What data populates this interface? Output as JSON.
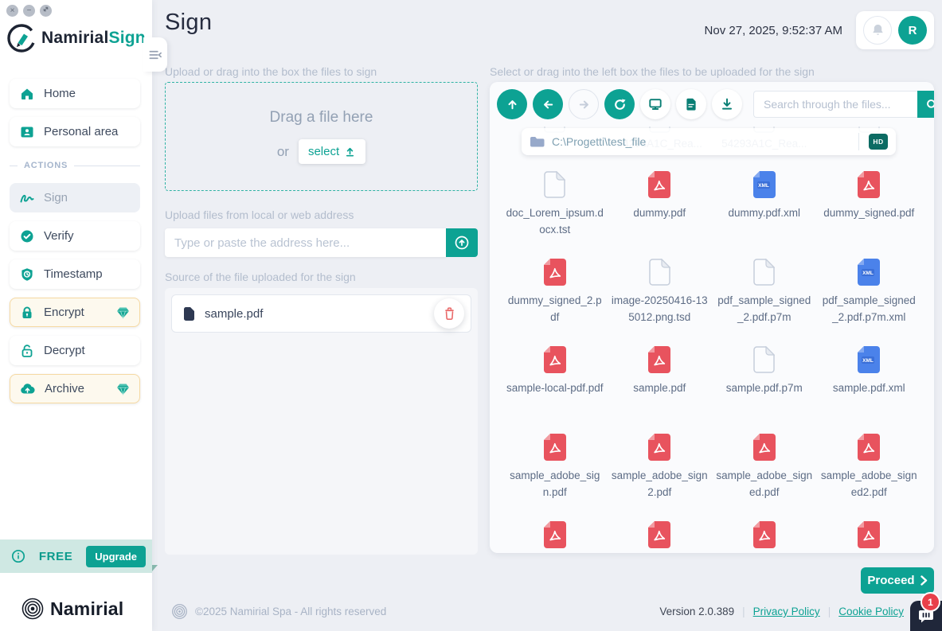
{
  "colors": {
    "teal": "#0da293",
    "navy": "#262c3f",
    "pdf_red": "#e8535e",
    "xml_blue": "#4b82ea",
    "premium_border": "#f6d9a2",
    "badge_red": "#e8404a"
  },
  "brand": {
    "primary": "Namirial",
    "accent": "Sign"
  },
  "window_controls": {
    "close": "×",
    "minimize": "−"
  },
  "sidebar": {
    "nav": [
      {
        "label": "Home",
        "icon": "home-icon"
      },
      {
        "label": "Personal area",
        "icon": "id-card-icon"
      }
    ],
    "section_label": "ACTIONS",
    "actions": [
      {
        "label": "Sign",
        "icon": "signature-icon",
        "state": "selected"
      },
      {
        "label": "Verify",
        "icon": "badge-check-icon"
      },
      {
        "label": "Timestamp",
        "icon": "shield-clock-icon"
      },
      {
        "label": "Encrypt",
        "icon": "lock-icon",
        "premium": true
      },
      {
        "label": "Decrypt",
        "icon": "unlock-icon"
      },
      {
        "label": "Archive",
        "icon": "cloud-upload-icon",
        "premium": true
      }
    ],
    "plan": {
      "label": "FREE",
      "upgrade": "Upgrade"
    },
    "footer_brand": "Namirial"
  },
  "header": {
    "title": "Sign",
    "datetime": "Nov 27, 2025, 9:52:37 AM",
    "avatar_initial": "R"
  },
  "upload": {
    "drop_label": "Upload or drag into the box the files to sign",
    "drag_text": "Drag a file here",
    "or_text": "or",
    "select_label": "select",
    "address_label": "Upload files from local or web address",
    "address_placeholder": "Type or paste the address here...",
    "source_label": "Source of the file uploaded for the sign",
    "files": [
      {
        "name": "sample.pdf"
      }
    ]
  },
  "browser": {
    "label": "Select or drag into the left box the files to be uploaded for the sign",
    "toolbar_icons": [
      "up-icon",
      "back-icon",
      "forward-icon",
      "refresh-icon",
      "monitor-icon",
      "document-icon",
      "download-icon",
      "search-icon"
    ],
    "search_placeholder": "Search through the files...",
    "path": "C:\\Progetti\\test_file",
    "drive_badge": "HD",
    "obscured_files": [
      "",
      "54293A1C_Rea...",
      "54293A1C_Rea...",
      ""
    ],
    "files": [
      {
        "name": "doc_Lorem_ipsum.docx.tst",
        "type": "file"
      },
      {
        "name": "dummy.pdf",
        "type": "pdf"
      },
      {
        "name": "dummy.pdf.xml",
        "type": "xml"
      },
      {
        "name": "dummy_signed.pdf",
        "type": "pdf"
      },
      {
        "name": "dummy_signed_2.pdf",
        "type": "pdf"
      },
      {
        "name": "image-20250416-135012.png.tsd",
        "type": "file"
      },
      {
        "name": "pdf_sample_signed_2.pdf.p7m",
        "type": "file"
      },
      {
        "name": "pdf_sample_signed_2.pdf.p7m.xml",
        "type": "xml"
      },
      {
        "name": "sample-local-pdf.pdf",
        "type": "pdf"
      },
      {
        "name": "sample.pdf",
        "type": "pdf"
      },
      {
        "name": "sample.pdf.p7m",
        "type": "file"
      },
      {
        "name": "sample.pdf.xml",
        "type": "xml"
      },
      {
        "name": "sample_adobe_sign.pdf",
        "type": "pdf"
      },
      {
        "name": "sample_adobe_sign2.pdf",
        "type": "pdf"
      },
      {
        "name": "sample_adobe_signed.pdf",
        "type": "pdf"
      },
      {
        "name": "sample_adobe_signed2.pdf",
        "type": "pdf"
      },
      {
        "name": "",
        "type": "pdf"
      },
      {
        "name": "",
        "type": "pdf"
      },
      {
        "name": "",
        "type": "pdf"
      },
      {
        "name": "",
        "type": "pdf"
      }
    ]
  },
  "proceed": {
    "label": "Proceed"
  },
  "footer": {
    "copyright": "©2025 Namirial Spa - All rights reserved",
    "version": "Version 2.0.389",
    "privacy": "Privacy Policy",
    "cookie": "Cookie Policy"
  },
  "chat": {
    "badge": "1"
  }
}
